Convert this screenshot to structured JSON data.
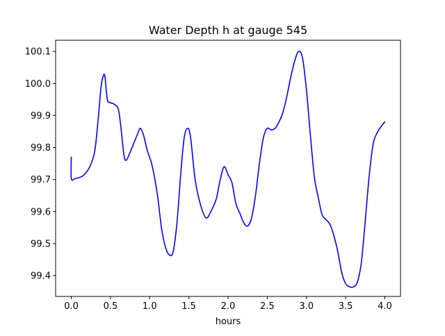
{
  "chart_data": {
    "type": "line",
    "title": "Water Depth h at gauge 545",
    "xlabel": "hours",
    "ylabel": "",
    "xlim": [
      -0.2,
      4.2
    ],
    "ylim": [
      99.335,
      100.135
    ],
    "grid": false,
    "x_ticks": [
      0.0,
      0.5,
      1.0,
      1.5,
      2.0,
      2.5,
      3.0,
      3.5,
      4.0
    ],
    "x_tick_labels": [
      "0.0",
      "0.5",
      "1.0",
      "1.5",
      "2.0",
      "2.5",
      "3.0",
      "3.5",
      "4.0"
    ],
    "y_ticks": [
      99.4,
      99.5,
      99.6,
      99.7,
      99.8,
      99.9,
      100.0,
      100.1
    ],
    "y_tick_labels": [
      "99.4",
      "99.5",
      "99.6",
      "99.7",
      "99.8",
      "99.9",
      "100.0",
      "100.1"
    ],
    "series": [
      {
        "color": "#0000ff",
        "points": [
          [
            0.0,
            99.77
          ],
          [
            0.0,
            99.703
          ],
          [
            0.05,
            99.703
          ],
          [
            0.1,
            99.706
          ],
          [
            0.15,
            99.712
          ],
          [
            0.2,
            99.725
          ],
          [
            0.25,
            99.748
          ],
          [
            0.3,
            99.79
          ],
          [
            0.34,
            99.88
          ],
          [
            0.38,
            99.99
          ],
          [
            0.41,
            100.025
          ],
          [
            0.43,
            100.02
          ],
          [
            0.46,
            99.95
          ],
          [
            0.5,
            99.94
          ],
          [
            0.55,
            99.935
          ],
          [
            0.6,
            99.92
          ],
          [
            0.63,
            99.87
          ],
          [
            0.67,
            99.78
          ],
          [
            0.7,
            99.76
          ],
          [
            0.75,
            99.785
          ],
          [
            0.8,
            99.815
          ],
          [
            0.85,
            99.845
          ],
          [
            0.88,
            99.86
          ],
          [
            0.92,
            99.84
          ],
          [
            0.97,
            99.79
          ],
          [
            1.03,
            99.745
          ],
          [
            1.1,
            99.65
          ],
          [
            1.15,
            99.55
          ],
          [
            1.2,
            99.49
          ],
          [
            1.25,
            99.465
          ],
          [
            1.3,
            99.475
          ],
          [
            1.35,
            99.57
          ],
          [
            1.4,
            99.73
          ],
          [
            1.44,
            99.83
          ],
          [
            1.48,
            99.86
          ],
          [
            1.52,
            99.835
          ],
          [
            1.58,
            99.7
          ],
          [
            1.65,
            99.62
          ],
          [
            1.72,
            99.58
          ],
          [
            1.78,
            99.6
          ],
          [
            1.85,
            99.64
          ],
          [
            1.9,
            99.7
          ],
          [
            1.95,
            99.74
          ],
          [
            2.0,
            99.715
          ],
          [
            2.05,
            99.69
          ],
          [
            2.1,
            99.625
          ],
          [
            2.15,
            99.595
          ],
          [
            2.2,
            99.565
          ],
          [
            2.25,
            99.555
          ],
          [
            2.3,
            99.58
          ],
          [
            2.35,
            99.65
          ],
          [
            2.4,
            99.75
          ],
          [
            2.45,
            99.83
          ],
          [
            2.5,
            99.86
          ],
          [
            2.55,
            99.855
          ],
          [
            2.6,
            99.86
          ],
          [
            2.65,
            99.88
          ],
          [
            2.7,
            99.91
          ],
          [
            2.75,
            99.96
          ],
          [
            2.8,
            100.02
          ],
          [
            2.85,
            100.07
          ],
          [
            2.9,
            100.1
          ],
          [
            2.95,
            100.08
          ],
          [
            3.0,
            99.98
          ],
          [
            3.05,
            99.84
          ],
          [
            3.1,
            99.71
          ],
          [
            3.15,
            99.645
          ],
          [
            3.2,
            99.59
          ],
          [
            3.25,
            99.575
          ],
          [
            3.3,
            99.56
          ],
          [
            3.35,
            99.525
          ],
          [
            3.4,
            99.475
          ],
          [
            3.45,
            99.41
          ],
          [
            3.5,
            99.375
          ],
          [
            3.55,
            99.365
          ],
          [
            3.6,
            99.365
          ],
          [
            3.65,
            99.38
          ],
          [
            3.7,
            99.44
          ],
          [
            3.75,
            99.57
          ],
          [
            3.8,
            99.71
          ],
          [
            3.85,
            99.81
          ],
          [
            3.9,
            99.845
          ],
          [
            3.95,
            99.865
          ],
          [
            4.0,
            99.88
          ]
        ]
      }
    ]
  }
}
